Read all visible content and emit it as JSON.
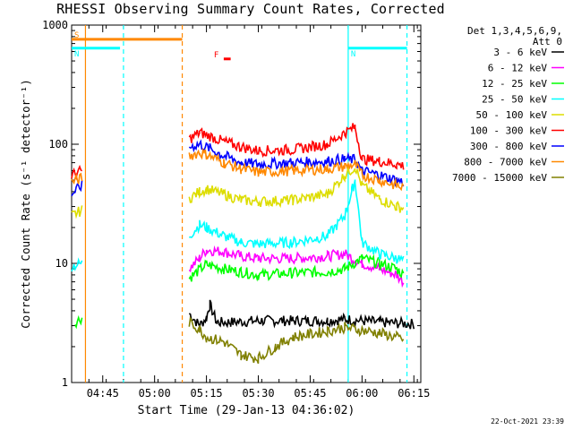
{
  "title": "RHESSI Observing Summary Count Rates, Corrected",
  "footer": {
    "date": "22-Oct-2021 23:39"
  },
  "chart_data": {
    "type": "line",
    "title": "RHESSI Observing Summary Count Rates, Corrected",
    "xlabel": "Start Time (29-Jan-13 04:36:02)",
    "ylabel": "Corrected Count Rate (s⁻¹ detector⁻¹)",
    "yscale": "log",
    "ylim": [
      1,
      1000
    ],
    "xlim": [
      "04:36",
      "06:17"
    ],
    "x_ticks": [
      "04:45",
      "05:00",
      "05:15",
      "05:30",
      "05:45",
      "06:00",
      "06:15"
    ],
    "y_ticks": [
      "1",
      "10",
      "100",
      "1000"
    ],
    "legend_placement": "right",
    "legend_header": [
      "Det 1,3,4,5,6,9,",
      "Att 0"
    ],
    "series": [
      {
        "name": "3 - 6 keV",
        "color": "#000000",
        "values": [
          [
            "05:10",
            3.8
          ],
          [
            "05:13",
            3.0
          ],
          [
            "05:15",
            3.5
          ],
          [
            "05:16",
            4.5
          ],
          [
            "05:18",
            3.2
          ],
          [
            "05:22",
            3.2
          ],
          [
            "05:30",
            3.3
          ],
          [
            "05:40",
            3.3
          ],
          [
            "05:50",
            3.3
          ],
          [
            "05:55",
            3.4
          ],
          [
            "06:05",
            3.2
          ],
          [
            "06:15",
            3.1
          ]
        ]
      },
      {
        "name": "6 - 12 keV",
        "color": "#ff00ff",
        "values": [
          [
            "05:10",
            9
          ],
          [
            "05:13",
            11
          ],
          [
            "05:15",
            13
          ],
          [
            "05:20",
            12.5
          ],
          [
            "05:25",
            11.5
          ],
          [
            "05:30",
            11
          ],
          [
            "05:40",
            11
          ],
          [
            "05:50",
            11.5
          ],
          [
            "05:55",
            12
          ],
          [
            "06:00",
            10
          ],
          [
            "06:05",
            9
          ],
          [
            "06:10",
            8
          ],
          [
            "06:12",
            7
          ]
        ]
      },
      {
        "name": "12 - 25 keV",
        "color": "#00ff00",
        "values": [
          [
            "04:37",
            3.2
          ],
          [
            "04:39",
            3.5
          ],
          [
            "05:10",
            7.5
          ],
          [
            "05:15",
            9.8
          ],
          [
            "05:20",
            9
          ],
          [
            "05:25",
            8.5
          ],
          [
            "05:30",
            8
          ],
          [
            "05:40",
            8.3
          ],
          [
            "05:50",
            8.5
          ],
          [
            "05:55",
            9
          ],
          [
            "06:00",
            11
          ],
          [
            "06:05",
            10
          ],
          [
            "06:10",
            9
          ],
          [
            "06:12",
            8
          ]
        ]
      },
      {
        "name": "25 - 50 keV",
        "color": "#00ffff",
        "values": [
          [
            "04:36",
            9.5
          ],
          [
            "04:39",
            10
          ],
          [
            "05:10",
            17
          ],
          [
            "05:13",
            21
          ],
          [
            "05:15",
            20
          ],
          [
            "05:20",
            17
          ],
          [
            "05:25",
            15
          ],
          [
            "05:30",
            14.5
          ],
          [
            "05:40",
            15
          ],
          [
            "05:50",
            17
          ],
          [
            "05:55",
            25
          ],
          [
            "05:57",
            40
          ],
          [
            "05:58",
            50
          ],
          [
            "06:00",
            15
          ],
          [
            "06:05",
            12
          ],
          [
            "06:10",
            11
          ],
          [
            "06:12",
            10.5
          ]
        ]
      },
      {
        "name": "50 - 100 keV",
        "color": "#dddd00",
        "values": [
          [
            "04:36",
            25
          ],
          [
            "04:39",
            28
          ],
          [
            "05:10",
            35
          ],
          [
            "05:13",
            40
          ],
          [
            "05:15",
            42
          ],
          [
            "05:20",
            38
          ],
          [
            "05:25",
            34
          ],
          [
            "05:30",
            33
          ],
          [
            "05:40",
            34
          ],
          [
            "05:50",
            38
          ],
          [
            "05:55",
            55
          ],
          [
            "05:58",
            65
          ],
          [
            "06:00",
            45
          ],
          [
            "06:05",
            35
          ],
          [
            "06:10",
            30
          ],
          [
            "06:12",
            29
          ]
        ]
      },
      {
        "name": "100 - 300 keV",
        "color": "#ff0000",
        "values": [
          [
            "04:36",
            55
          ],
          [
            "04:39",
            60
          ],
          [
            "05:10",
            110
          ],
          [
            "05:13",
            125
          ],
          [
            "05:15",
            120
          ],
          [
            "05:20",
            105
          ],
          [
            "05:25",
            95
          ],
          [
            "05:30",
            88
          ],
          [
            "05:40",
            90
          ],
          [
            "05:50",
            100
          ],
          [
            "05:55",
            125
          ],
          [
            "05:58",
            140
          ],
          [
            "06:00",
            75
          ],
          [
            "06:05",
            72
          ],
          [
            "06:10",
            68
          ],
          [
            "06:12",
            66
          ]
        ]
      },
      {
        "name": "300 - 800 keV",
        "color": "#0000ff",
        "values": [
          [
            "04:36",
            38
          ],
          [
            "04:39",
            45
          ],
          [
            "05:10",
            95
          ],
          [
            "05:13",
            100
          ],
          [
            "05:15",
            95
          ],
          [
            "05:20",
            80
          ],
          [
            "05:25",
            70
          ],
          [
            "05:30",
            68
          ],
          [
            "05:40",
            70
          ],
          [
            "05:50",
            72
          ],
          [
            "05:55",
            75
          ],
          [
            "05:58",
            74
          ],
          [
            "06:00",
            60
          ],
          [
            "06:05",
            55
          ],
          [
            "06:10",
            50
          ],
          [
            "06:12",
            48
          ]
        ]
      },
      {
        "name": "800 - 7000 keV",
        "color": "#ff8800",
        "values": [
          [
            "04:36",
            48
          ],
          [
            "04:39",
            52
          ],
          [
            "05:10",
            80
          ],
          [
            "05:13",
            85
          ],
          [
            "05:15",
            82
          ],
          [
            "05:20",
            70
          ],
          [
            "05:25",
            62
          ],
          [
            "05:30",
            58
          ],
          [
            "05:40",
            60
          ],
          [
            "05:50",
            62
          ],
          [
            "05:55",
            65
          ],
          [
            "05:58",
            68
          ],
          [
            "06:00",
            55
          ],
          [
            "06:05",
            50
          ],
          [
            "06:10",
            45
          ],
          [
            "06:12",
            43
          ]
        ]
      },
      {
        "name": "7000 - 15000 keV",
        "color": "#808000",
        "values": [
          [
            "05:10",
            3.2
          ],
          [
            "05:13",
            2.8
          ],
          [
            "05:15",
            2.4
          ],
          [
            "05:20",
            2.2
          ],
          [
            "05:25",
            1.7
          ],
          [
            "05:30",
            1.6
          ],
          [
            "05:35",
            2.0
          ],
          [
            "05:40",
            2.4
          ],
          [
            "05:50",
            2.7
          ],
          [
            "05:55",
            2.9
          ],
          [
            "06:05",
            2.6
          ],
          [
            "06:10",
            2.4
          ],
          [
            "06:12",
            2.3
          ]
        ]
      }
    ],
    "flag_bars": [
      {
        "label": "S",
        "color": "#ff8800",
        "start": "04:36",
        "end": "05:08",
        "y": 760
      },
      {
        "label": "N",
        "color": "#00ffff",
        "start": "04:36",
        "end": "04:50",
        "y": 640
      },
      {
        "label": "N",
        "color": "#00ffff",
        "start": "05:56",
        "end": "06:13",
        "y": 640
      },
      {
        "label": "F",
        "color": "#ff0000",
        "start": "05:20",
        "end": "05:22",
        "y": 520
      }
    ],
    "vlines": [
      {
        "time": "04:40",
        "color": "#ff8800",
        "style": "solid"
      },
      {
        "time": "04:51",
        "color": "#00ffff",
        "style": "dashed"
      },
      {
        "time": "05:08",
        "color": "#ff8800",
        "style": "dashed"
      },
      {
        "time": "05:56",
        "color": "#00ffff",
        "style": "solid"
      },
      {
        "time": "06:13",
        "color": "#00ffff",
        "style": "dashed"
      }
    ]
  }
}
